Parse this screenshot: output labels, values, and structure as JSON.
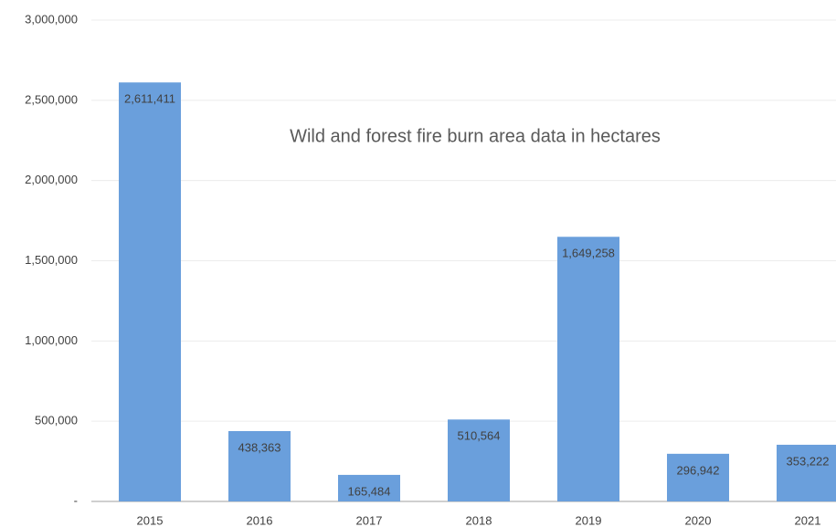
{
  "chart_data": {
    "type": "bar",
    "title": "Wild and forest fire burn area data in hectares",
    "categories": [
      "2015",
      "2016",
      "2017",
      "2018",
      "2019",
      "2020",
      "2021"
    ],
    "values": [
      2611411,
      438363,
      165484,
      510564,
      1649258,
      296942,
      353222
    ],
    "value_labels": [
      "2,611,411",
      "438,363",
      "165,484",
      "510,564",
      "1,649,258",
      "296,942",
      "353,222"
    ],
    "color": "#6a9fdc",
    "ylim": [
      0,
      3000000
    ],
    "yticks": [
      {
        "value": 0,
        "label": "-"
      },
      {
        "value": 500000,
        "label": "500,000"
      },
      {
        "value": 1000000,
        "label": "1,000,000"
      },
      {
        "value": 1500000,
        "label": "1,500,000"
      },
      {
        "value": 2000000,
        "label": "2,000,000"
      },
      {
        "value": 2500000,
        "label": "2,500,000"
      },
      {
        "value": 3000000,
        "label": "3,000,000"
      }
    ],
    "grid": true
  }
}
